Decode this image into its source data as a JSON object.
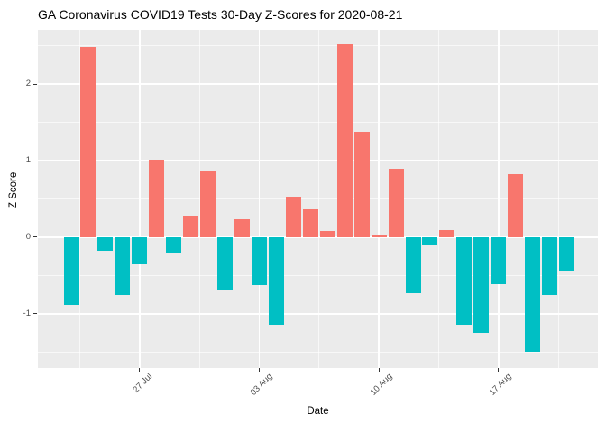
{
  "title": "GA Coronavirus COVID19 Tests 30-Day Z-Scores for 2020-08-21",
  "chart_data": {
    "type": "bar",
    "title": "GA Coronavirus COVID19 Tests 30-Day Z-Scores for 2020-08-21",
    "xlabel": "Date",
    "ylabel": "Z Score",
    "x": [
      "2020-07-23",
      "2020-07-24",
      "2020-07-25",
      "2020-07-26",
      "2020-07-27",
      "2020-07-28",
      "2020-07-29",
      "2020-07-30",
      "2020-07-31",
      "2020-08-01",
      "2020-08-02",
      "2020-08-03",
      "2020-08-04",
      "2020-08-05",
      "2020-08-06",
      "2020-08-07",
      "2020-08-08",
      "2020-08-09",
      "2020-08-10",
      "2020-08-11",
      "2020-08-12",
      "2020-08-13",
      "2020-08-14",
      "2020-08-15",
      "2020-08-16",
      "2020-08-17",
      "2020-08-18",
      "2020-08-19",
      "2020-08-20",
      "2020-08-21"
    ],
    "values": [
      -0.88,
      2.49,
      -0.18,
      -0.75,
      -0.35,
      1.01,
      -0.2,
      0.28,
      0.86,
      -0.7,
      0.24,
      -0.62,
      -1.15,
      0.53,
      0.37,
      0.08,
      2.52,
      1.38,
      0.02,
      0.9,
      -0.73,
      -0.11,
      0.09,
      -1.15,
      -1.25,
      -0.61,
      0.83,
      -1.5,
      -0.75,
      -0.44
    ],
    "x_tick_labels": [
      "27 Jul",
      "03 Aug",
      "10 Aug",
      "17 Aug"
    ],
    "x_tick_indices": [
      4,
      11,
      18,
      25
    ],
    "y_tick_labels": [
      "-1",
      "0",
      "1",
      "2"
    ],
    "y_ticks": [
      -1,
      0,
      1,
      2
    ],
    "y_minor_ticks": [
      -1.5,
      -0.5,
      0.5,
      1.5,
      2.5
    ],
    "x_minor_tick_indices": [
      0.5,
      7.5,
      14.5,
      21.5,
      28.5
    ],
    "ylim": [
      -1.71,
      2.71
    ],
    "grid": "major-and-minor-white-on-gray",
    "legend": "none",
    "colors": {
      "positive_bar": "#F8766D",
      "negative_bar": "#00BFC4",
      "panel_background": "#EBEBEB",
      "gridline": "#FFFFFF",
      "tick_text": "#4D4D4D",
      "title_text": "#000000"
    }
  }
}
